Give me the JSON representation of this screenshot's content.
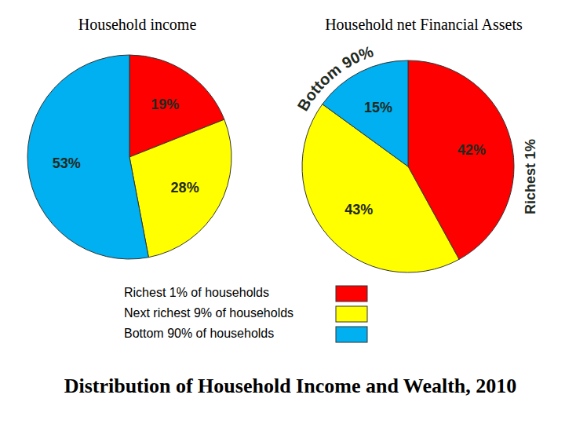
{
  "title": "Distribution of Household Income and Wealth, 2010",
  "legend": "bottom",
  "chart_data": [
    {
      "type": "pie",
      "title": "Household income",
      "categories": [
        "Richest 1% of households",
        "Next richest 9% of households",
        "Bottom 90% of households"
      ],
      "values": [
        19,
        28,
        53
      ],
      "value_labels": [
        "19%",
        "28%",
        "53%"
      ],
      "data_labels": true,
      "colors": [
        "#ff0000",
        "#ffff00",
        "#00b0f0"
      ]
    },
    {
      "type": "pie",
      "title": "Household net Financial Assets",
      "categories": [
        "Richest 1% of households",
        "Next richest 9% of households",
        "Bottom 90% of households"
      ],
      "values": [
        42,
        43,
        15
      ],
      "value_labels": [
        "42%",
        "43%",
        "15%"
      ],
      "data_labels": true,
      "colors": [
        "#ff0000",
        "#ffff00",
        "#00b0f0"
      ],
      "annotations": [
        "Bottom 90%",
        "Richest 1%"
      ]
    }
  ]
}
